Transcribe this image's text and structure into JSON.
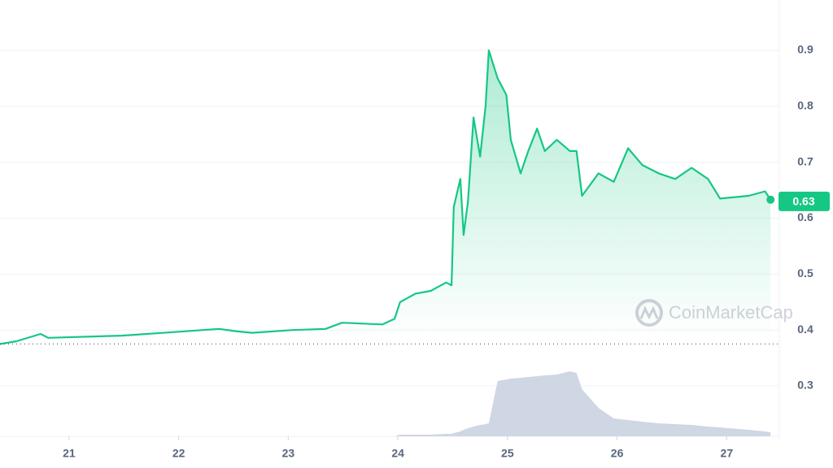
{
  "chart_data": {
    "type": "line",
    "x": [
      20.37,
      20.52,
      20.74,
      20.81,
      21.48,
      22.0,
      22.37,
      22.52,
      22.67,
      23.04,
      23.34,
      23.49,
      23.86,
      23.97,
      24.02,
      24.16,
      24.3,
      24.44,
      24.49,
      24.51,
      24.57,
      24.6,
      24.64,
      24.69,
      24.75,
      24.8,
      24.83,
      24.91,
      24.99,
      25.03,
      25.12,
      25.19,
      25.27,
      25.34,
      25.45,
      25.57,
      25.63,
      25.68,
      25.83,
      25.97,
      26.1,
      26.23,
      26.38,
      26.53,
      26.68,
      26.83,
      26.94,
      27.2,
      27.35,
      27.4
    ],
    "series": [
      {
        "color": "#16c784",
        "values": [
          0.375,
          0.38,
          0.393,
          0.386,
          0.39,
          0.397,
          0.402,
          0.398,
          0.395,
          0.4,
          0.402,
          0.413,
          0.41,
          0.42,
          0.45,
          0.465,
          0.47,
          0.485,
          0.48,
          0.62,
          0.67,
          0.57,
          0.63,
          0.78,
          0.71,
          0.8,
          0.9,
          0.85,
          0.82,
          0.74,
          0.68,
          0.72,
          0.76,
          0.72,
          0.74,
          0.72,
          0.72,
          0.64,
          0.68,
          0.665,
          0.725,
          0.695,
          0.68,
          0.67,
          0.69,
          0.67,
          0.635,
          0.64,
          0.648,
          0.633
        ]
      },
      {
        "color": "#cfd6e4",
        "axis": "volume",
        "values": [
          0,
          0,
          0,
          0,
          0,
          0,
          0,
          0,
          0,
          0,
          0,
          0,
          0,
          0,
          2,
          2,
          2,
          3,
          3,
          4,
          6,
          8,
          10,
          12,
          14,
          15,
          16,
          68,
          70,
          71,
          72,
          73,
          74,
          75,
          76,
          80,
          78,
          58,
          35,
          22,
          20,
          18,
          16,
          15,
          14,
          12,
          11,
          8,
          6,
          5
        ]
      }
    ],
    "xlim": [
      20.37,
      27.48
    ],
    "xticks": [
      21,
      22,
      23,
      24,
      25,
      26,
      27
    ],
    "ylim": [
      0.21,
      0.99
    ],
    "yticks": [
      0.3,
      0.4,
      0.5,
      0.6,
      0.7,
      0.8,
      0.9
    ],
    "vlim": [
      0,
      100
    ],
    "reference_line": 0.375,
    "current_price": 0.63,
    "watermark": "CoinMarketCap",
    "grid": true
  }
}
